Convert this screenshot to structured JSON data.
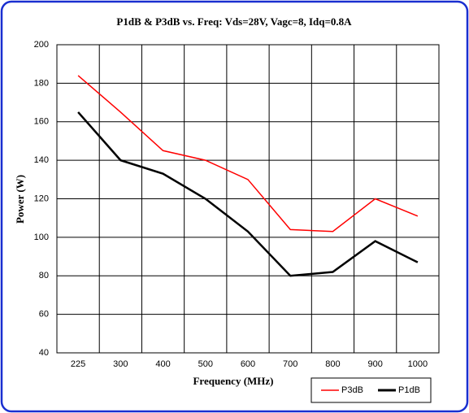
{
  "chart_data": {
    "type": "line",
    "title": "P1dB & P3dB vs. Freq: Vds=28V, Vagc=8,  Idq=0.8A",
    "x_label": "Frequency (MHz)",
    "y_label": "Power (W)",
    "categories": [
      "225",
      "300",
      "400",
      "500",
      "600",
      "700",
      "800",
      "900",
      "1000"
    ],
    "series": [
      {
        "name": "P3dB",
        "color": "#ff0000",
        "values": [
          184,
          165,
          145,
          140,
          130,
          104,
          103,
          120,
          111
        ]
      },
      {
        "name": "P1dB",
        "color": "#000000",
        "values": [
          165,
          140,
          133,
          120,
          103,
          80,
          82,
          98,
          87
        ]
      }
    ],
    "ylim": [
      40,
      200
    ],
    "yticks": [
      40,
      60,
      80,
      100,
      120,
      140,
      160,
      180,
      200
    ],
    "grid": true,
    "legend": "lower right"
  }
}
